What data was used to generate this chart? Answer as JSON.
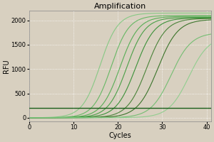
{
  "title": "Amplification",
  "xlabel": "Cycles",
  "ylabel": "RFU",
  "xlim": [
    0,
    41
  ],
  "ylim": [
    -80,
    2200
  ],
  "yticks": [
    0,
    500,
    1000,
    1500,
    2000
  ],
  "xticks": [
    0,
    10,
    20,
    30,
    40
  ],
  "background_color": "#d8d0c0",
  "plot_bg_color": "#d8d0c0",
  "grid_color": "#ffffff",
  "sigmoid_params": [
    {
      "midpoint": 16.0,
      "plateau": 2150,
      "steepness": 0.5
    },
    {
      "midpoint": 18.5,
      "plateau": 2100,
      "steepness": 0.5
    },
    {
      "midpoint": 20.5,
      "plateau": 2080,
      "steepness": 0.48
    },
    {
      "midpoint": 22.0,
      "plateau": 2060,
      "steepness": 0.48
    },
    {
      "midpoint": 24.0,
      "plateau": 2050,
      "steepness": 0.46
    },
    {
      "midpoint": 26.5,
      "plateau": 2040,
      "steepness": 0.46
    },
    {
      "midpoint": 29.0,
      "plateau": 2020,
      "steepness": 0.44
    },
    {
      "midpoint": 32.0,
      "plateau": 1750,
      "steepness": 0.44
    },
    {
      "midpoint": 36.0,
      "plateau": 1680,
      "steepness": 0.44
    }
  ],
  "flat_line_value": 200,
  "line_colors": [
    "#7ec87e",
    "#5ab55a",
    "#4aaa4a",
    "#3a9a3a",
    "#2a8a2a",
    "#3a7a2a",
    "#2a6a1a",
    "#6abc6a",
    "#8ace8a"
  ],
  "flat_line_color": "#1a5e1a",
  "title_fontsize": 8,
  "axis_fontsize": 7,
  "tick_fontsize": 6
}
